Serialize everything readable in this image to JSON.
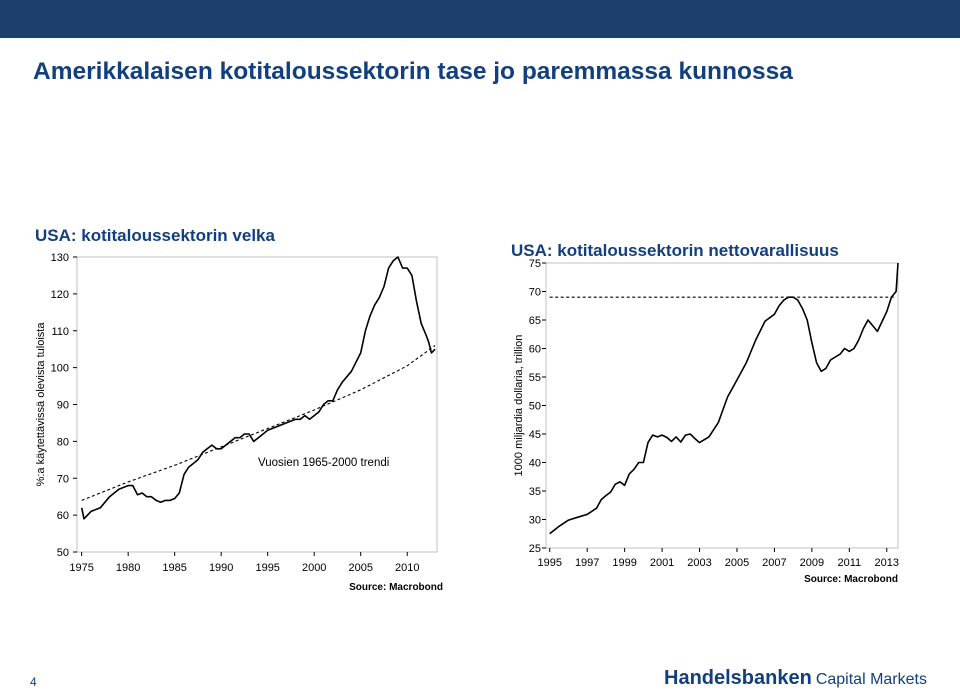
{
  "slide": {
    "title": "Amerikkalaisen kotitaloussektorin tase jo paremmassa kunnossa",
    "page_number": "4",
    "logo_brand": "Handelsbanken",
    "logo_sub": "Capital Markets",
    "colors": {
      "topbar": "#1c3f6e",
      "title": "#123f7d",
      "line": "#000000"
    }
  },
  "chart_data": [
    {
      "type": "line",
      "title": "USA: kotitaloussektorin velka",
      "ylabel": "%:a käytettävissä olevista tuloista",
      "xlabel": "",
      "source": "Source: Macrobond",
      "annotation": "Vuosien 1965-2000 trendi",
      "ylim": [
        50,
        130
      ],
      "xlim": [
        1974.5,
        2013.2
      ],
      "yticks": [
        50,
        60,
        70,
        80,
        90,
        100,
        110,
        120,
        130
      ],
      "xticks": [
        1975,
        1980,
        1985,
        1990,
        1995,
        2000,
        2005,
        2010
      ],
      "grid": false,
      "legend": "none",
      "series": [
        {
          "style": "solid",
          "x": [
            1975.0,
            1975.25,
            1976.0,
            1977.0,
            1978.0,
            1979.0,
            1980.0,
            1980.5,
            1981.0,
            1981.5,
            1982.0,
            1982.5,
            1983.0,
            1983.5,
            1984.0,
            1984.5,
            1985.0,
            1985.5,
            1986.0,
            1986.5,
            1987.0,
            1987.5,
            1988.0,
            1988.5,
            1989.0,
            1989.5,
            1990.0,
            1990.5,
            1991.0,
            1991.5,
            1992.0,
            1992.5,
            1993.0,
            1993.5,
            1994.0,
            1995.0,
            1996.0,
            1997.0,
            1998.0,
            1998.5,
            1999.0,
            1999.5,
            2000.0,
            2000.5,
            2001.0,
            2001.5,
            2002.0,
            2002.5,
            2003.0,
            2004.0,
            2005.0,
            2005.5,
            2006.0,
            2006.5,
            2007.0,
            2007.5,
            2008.0,
            2008.5,
            2009.0,
            2009.5,
            2010.0,
            2010.5,
            2011.0,
            2011.5,
            2012.0,
            2012.3,
            2012.6,
            2013.0
          ],
          "y": [
            62,
            59,
            61,
            62,
            65,
            67,
            68,
            68,
            65.5,
            66,
            65,
            65,
            64,
            63.5,
            64,
            64,
            64.5,
            66,
            71,
            73,
            74,
            75,
            77,
            78,
            79,
            78,
            78,
            79,
            80,
            81,
            81,
            82,
            82,
            80,
            81,
            83,
            84,
            85,
            86,
            86,
            87,
            86,
            87,
            88,
            90,
            91,
            91,
            94,
            96,
            99,
            104,
            110,
            114,
            117,
            119,
            122,
            127,
            129,
            130,
            127,
            127,
            125,
            118,
            112,
            109,
            107,
            104,
            105
          ]
        },
        {
          "style": "dashed",
          "x": [
            1975,
            1980,
            1985,
            1990,
            1995,
            2000,
            2005,
            2010,
            2013
          ],
          "y": [
            64,
            69,
            73.5,
            78.5,
            83.5,
            88.5,
            94,
            100.5,
            106
          ]
        }
      ]
    },
    {
      "type": "line",
      "title": "USA: kotitaloussektorin nettovarallisuus",
      "ylabel": "1000 miljardia dollaria, trillion",
      "xlabel": "",
      "source": "Source: Macrobond",
      "ylim": [
        25,
        75
      ],
      "xlim": [
        1994.8,
        2013.6
      ],
      "yticks": [
        25,
        30,
        35,
        40,
        45,
        50,
        55,
        60,
        65,
        70,
        75
      ],
      "xticks": [
        1995,
        1997,
        1999,
        2001,
        2003,
        2005,
        2007,
        2009,
        2011,
        2013
      ],
      "grid": false,
      "legend": "none",
      "series": [
        {
          "style": "solid",
          "x": [
            1995.0,
            1995.5,
            1996.0,
            1996.5,
            1997.0,
            1997.5,
            1997.75,
            1998.0,
            1998.25,
            1998.5,
            1998.75,
            1999.0,
            1999.25,
            1999.5,
            1999.75,
            2000.0,
            2000.25,
            2000.5,
            2000.75,
            2001.0,
            2001.25,
            2001.5,
            2001.75,
            2002.0,
            2002.25,
            2002.5,
            2002.75,
            2003.0,
            2003.5,
            2004.0,
            2004.5,
            2005.0,
            2005.5,
            2006.0,
            2006.5,
            2007.0,
            2007.25,
            2007.5,
            2007.75,
            2008.0,
            2008.25,
            2008.5,
            2008.75,
            2009.0,
            2009.25,
            2009.5,
            2009.75,
            2010.0,
            2010.25,
            2010.5,
            2010.75,
            2011.0,
            2011.25,
            2011.5,
            2011.75,
            2012.0,
            2012.5,
            2013.0,
            2013.25,
            2013.5
          ],
          "y": [
            27.5,
            28.8,
            29.9,
            30.4,
            30.9,
            32,
            33.5,
            34.2,
            34.8,
            36.2,
            36.6,
            36,
            38,
            38.8,
            40,
            40,
            43.5,
            44.8,
            44.5,
            44.8,
            44.4,
            43.7,
            44.5,
            43.6,
            44.8,
            45,
            44.2,
            43.5,
            44.5,
            47,
            51.5,
            54.5,
            57.5,
            61.5,
            64.8,
            66,
            67.5,
            68.5,
            69,
            69,
            68.5,
            67,
            65,
            61,
            57.5,
            56,
            56.5,
            58,
            58.5,
            59,
            60,
            59.5,
            60,
            61.5,
            63.5,
            65,
            63,
            66.5,
            69,
            70
          ],
          "y_end": 75
        },
        {
          "style": "dashed",
          "x": [
            1995,
            2013.5
          ],
          "y": [
            69,
            69
          ]
        }
      ]
    }
  ]
}
